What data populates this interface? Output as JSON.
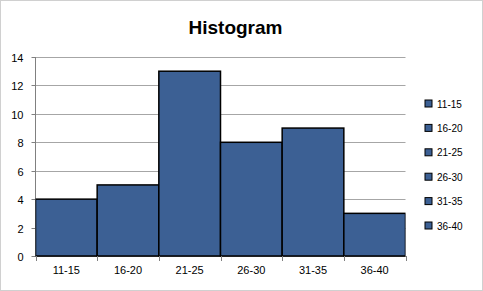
{
  "chart_data": {
    "type": "histogram",
    "title": "Histogram",
    "categories": [
      "11-15",
      "16-20",
      "21-25",
      "26-30",
      "31-35",
      "36-40"
    ],
    "values": [
      4,
      5,
      13,
      8,
      9,
      3
    ],
    "color": "#3c6094",
    "ylim": [
      0,
      14
    ],
    "yticks": [
      0,
      2,
      4,
      6,
      8,
      10,
      12,
      14
    ],
    "grid": true,
    "legend": "right"
  }
}
